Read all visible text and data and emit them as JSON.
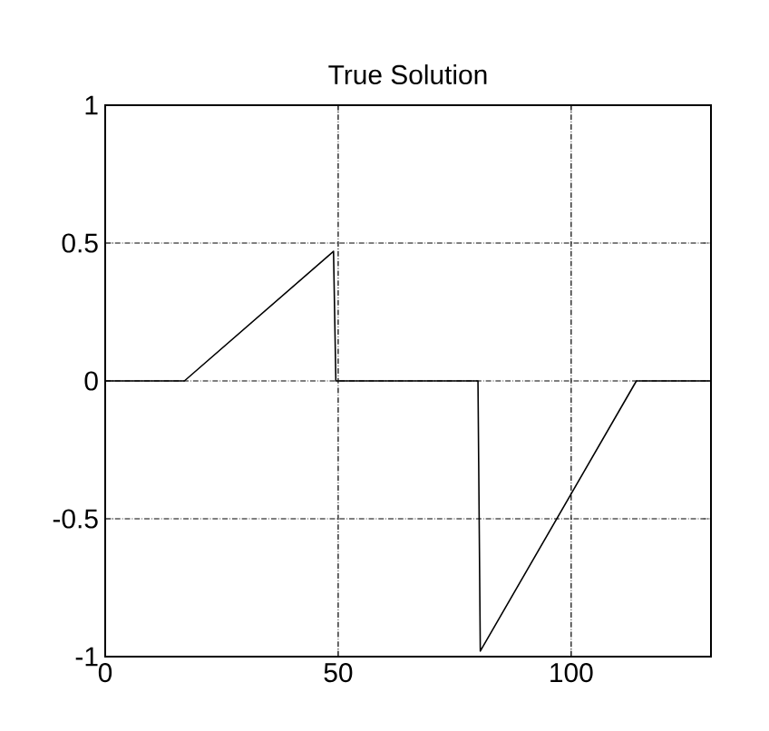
{
  "chart_data": {
    "type": "line",
    "title": "True Solution",
    "xlim": [
      0,
      130
    ],
    "ylim": [
      -1,
      1
    ],
    "xticks": [
      0,
      50,
      100
    ],
    "yticks": [
      -1,
      -0.5,
      0,
      0.5,
      1
    ],
    "grid": true,
    "line_style": "solid",
    "marker": "none",
    "x": [
      0,
      17,
      49,
      49.5,
      80,
      80.5,
      114,
      130
    ],
    "series": [
      {
        "color": "#000000",
        "values": [
          0,
          0,
          0.47,
          0,
          0,
          -0.98,
          0,
          0
        ]
      }
    ]
  }
}
